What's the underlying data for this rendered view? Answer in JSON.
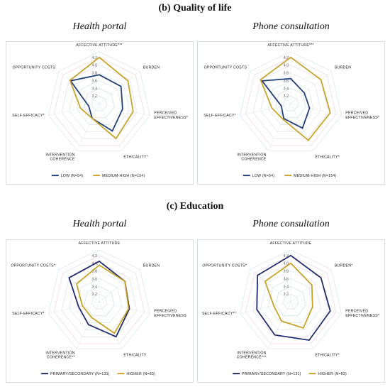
{
  "sections": [
    {
      "title": "(b) Quality of life",
      "panels": [
        {
          "title": "Health portal",
          "chart_index": 0
        },
        {
          "title": "Phone consultation",
          "chart_index": 1
        }
      ]
    },
    {
      "title": "(c) Education",
      "panels": [
        {
          "title": "Health portal",
          "chart_index": 2
        },
        {
          "title": "Phone consultation",
          "chart_index": 3
        }
      ]
    }
  ],
  "chart_data": [
    {
      "type": "radar",
      "axes": [
        [
          "AFFECTIVE ATTITUDE***"
        ],
        [
          "BURDEN"
        ],
        [
          "PERCEIVED",
          "EFFECTIVENESS*"
        ],
        [
          "ETHICALITY*"
        ],
        [
          "INTERVENTION",
          "COHERENCE"
        ],
        [
          "SELF-EFFICACY*"
        ],
        [
          "OPPORTUNITY COSTS"
        ]
      ],
      "ticks": [
        "3.2",
        "3.4",
        "3.6",
        "3.8",
        "4.0",
        "4.2"
      ],
      "rlim": [
        3.0,
        4.2
      ],
      "series": [
        {
          "name": "LOW (N=54)",
          "color": "#1f3f7a",
          "values": [
            3.75,
            3.72,
            3.62,
            3.78,
            3.42,
            3.28,
            3.95
          ]
        },
        {
          "name": "MEDIUM-HIGH (N=154)",
          "color": "#c9a227",
          "values": [
            4.2,
            3.95,
            3.9,
            4.0,
            3.42,
            3.5,
            3.97
          ]
        }
      ],
      "legend_position": "bottom"
    },
    {
      "type": "radar",
      "axes": [
        [
          "AFFECTIVE ATTITUDE***"
        ],
        [
          "BURDEN"
        ],
        [
          "PERCEIVED",
          "EFFECTIVENESS*"
        ],
        [
          "ETHICALITY*"
        ],
        [
          "INTERVENTION",
          "COHERENCE"
        ],
        [
          "SELF-EFFICACY*"
        ],
        [
          "OPPORTUNITY COSTS"
        ]
      ],
      "ticks": [
        "3.2",
        "3.4",
        "3.6",
        "3.8",
        "4.0",
        "4.2"
      ],
      "rlim": [
        3.0,
        4.2
      ],
      "series": [
        {
          "name": "LOW (N=54)",
          "color": "#1f3f7a",
          "values": [
            3.65,
            3.45,
            3.5,
            3.7,
            3.42,
            3.25,
            3.95
          ]
        },
        {
          "name": "MEDIUM-HIGH (N=154)",
          "color": "#c9a227",
          "values": [
            4.2,
            4.0,
            4.05,
            4.05,
            3.45,
            3.5,
            4.0
          ]
        }
      ],
      "legend_position": "bottom"
    },
    {
      "type": "radar",
      "axes": [
        [
          "AFFECTIVE ATTITUDE"
        ],
        [
          "BURDEN"
        ],
        [
          "PERCEIVED",
          "EFFECTIVENESS"
        ],
        [
          "ETHICALITY"
        ],
        [
          "INTERVENTION",
          "COHERENCE**"
        ],
        [
          "SELF-EFFICACY*"
        ],
        [
          "OPPORTUNITY COSTS*"
        ]
      ],
      "ticks": [
        "3.2",
        "3.4",
        "3.6",
        "3.8",
        "4.0",
        "4.2"
      ],
      "rlim": [
        3.0,
        4.2
      ],
      "series": [
        {
          "name": "PRIMARY/SECONDARY (N=131)",
          "color": "#1f2a6b",
          "values": [
            4.05,
            3.85,
            3.8,
            4.0,
            3.65,
            3.55,
            4.0
          ]
        },
        {
          "name": "HIGHER (N=83)",
          "color": "#c9a227",
          "values": [
            3.95,
            3.85,
            3.78,
            3.9,
            3.45,
            3.45,
            3.75
          ]
        }
      ],
      "legend_position": "bottom"
    },
    {
      "type": "radar",
      "axes": [
        [
          "AFFECTIVE ATTITUDE"
        ],
        [
          "BURDEN*"
        ],
        [
          "PERCEIVED",
          "EFFECTIVENESS*"
        ],
        [
          "ETHICALITY*"
        ],
        [
          "INTERVENTION",
          "COHERENCE***"
        ],
        [
          "SELF-EFFICACY**"
        ],
        [
          "OPPORTUNITY COSTS*"
        ]
      ],
      "ticks": [
        "3.2",
        "3.4",
        "3.6",
        "3.8",
        "4.0",
        "4.2"
      ],
      "rlim": [
        3.0,
        4.2
      ],
      "series": [
        {
          "name": "PRIMARY/SECONDARY (N=131)",
          "color": "#1f2a6b",
          "values": [
            4.2,
            4.0,
            4.05,
            4.1,
            3.95,
            3.9,
            4.1
          ]
        },
        {
          "name": "HIGHER (N=83)",
          "color": "#c9a227",
          "values": [
            4.0,
            3.7,
            3.58,
            3.75,
            3.55,
            3.45,
            3.85
          ]
        }
      ],
      "legend_position": "bottom"
    }
  ]
}
